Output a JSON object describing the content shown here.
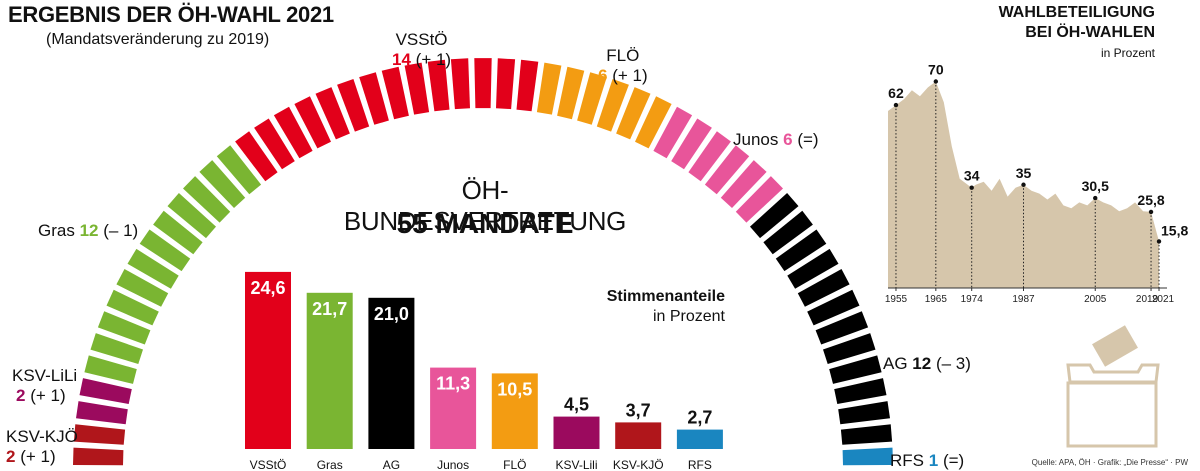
{
  "header": {
    "title": "ERGEBNIS DER ÖH-WAHL 2021",
    "subtitle": "(Mandatsveränderung zu 2019)"
  },
  "center": {
    "title": "ÖH-BUNDESVERTRETUNG",
    "subtitle": "55 MANDATE"
  },
  "party_labels": {
    "vsstoe": {
      "name": "VSStÖ",
      "seats": "14",
      "change": "(+ 1)"
    },
    "floe": {
      "name": "FLÖ",
      "seats": "6",
      "change": "(+ 1)"
    },
    "junos": {
      "name": "Junos",
      "seats": "6",
      "change": "(=)"
    },
    "gras": {
      "name": "Gras",
      "seats": "12",
      "change": "(– 1)"
    },
    "ksvlili": {
      "name": "KSV-LiLi",
      "seats": "2",
      "change": "(+ 1)"
    },
    "ksvkjoe": {
      "name": "KSV-KJÖ",
      "seats": "2",
      "change": "(+ 1)"
    },
    "ag": {
      "name": "AG",
      "seats": "12",
      "change": "(– 3)"
    },
    "rfs": {
      "name": "RFS",
      "seats": "1",
      "change": "(=)"
    }
  },
  "stimmen": {
    "title": "Stimmenanteile",
    "subtitle": "in Prozent"
  },
  "turnout": {
    "title_line1": "WAHLBETEILIGUNG",
    "title_line2": "BEI ÖH-WAHLEN",
    "subtitle": "in Prozent"
  },
  "source": "Quelle: APA, ÖH · Grafik: „Die Presse“ · PW",
  "colors": {
    "vsstoe": "#e2001a",
    "gras": "#7ab532",
    "ag": "#000000",
    "junos": "#e8559a",
    "floe": "#f39c12",
    "ksvlili": "#9b0a5e",
    "ksvkjoe": "#b0161b",
    "rfs": "#1a86c0",
    "turnout_fill": "#d6c6ab"
  },
  "chart_data": [
    {
      "type": "parliament",
      "total": 55,
      "parties": [
        {
          "name": "KSV-KJÖ",
          "seats": 2,
          "change": "+1",
          "color": "#b0161b"
        },
        {
          "name": "KSV-LiLi",
          "seats": 2,
          "change": "+1",
          "color": "#9b0a5e"
        },
        {
          "name": "Gras",
          "seats": 12,
          "change": "-1",
          "color": "#7ab532"
        },
        {
          "name": "VSStÖ",
          "seats": 14,
          "change": "+1",
          "color": "#e2001a"
        },
        {
          "name": "FLÖ",
          "seats": 6,
          "change": "+1",
          "color": "#f39c12"
        },
        {
          "name": "Junos",
          "seats": 6,
          "change": "=",
          "color": "#e8559a"
        },
        {
          "name": "AG",
          "seats": 12,
          "change": "-3",
          "color": "#000000"
        },
        {
          "name": "RFS",
          "seats": 1,
          "change": "=",
          "color": "#1a86c0"
        }
      ]
    },
    {
      "type": "bar",
      "categories": [
        "VSStÖ",
        "Gras",
        "AG",
        "Junos",
        "FLÖ",
        "KSV-Lili",
        "KSV-KJÖ",
        "RFS"
      ],
      "values": [
        24.6,
        21.7,
        21.0,
        11.3,
        10.5,
        4.5,
        3.7,
        2.7
      ],
      "value_labels": [
        "24,6",
        "21,7",
        "21,0",
        "11,3",
        "10,5",
        "4,5",
        "3,7",
        "2,7"
      ],
      "colors": [
        "#e2001a",
        "#7ab532",
        "#000000",
        "#e8559a",
        "#f39c12",
        "#9b0a5e",
        "#b0161b",
        "#1a86c0"
      ],
      "ylim": [
        0,
        25
      ]
    },
    {
      "type": "area",
      "x_ticks": [
        1955,
        1965,
        1974,
        1987,
        2005,
        2019,
        2021
      ],
      "x_tick_labels": [
        "1955",
        "1965",
        "1974",
        "1987",
        "2005",
        "2019",
        "2021"
      ],
      "xlim": [
        1953,
        2022
      ],
      "ylim": [
        0,
        80
      ],
      "x": [
        1953,
        1955,
        1957,
        1959,
        1961,
        1963,
        1965,
        1967,
        1969,
        1971,
        1973,
        1974,
        1975,
        1977,
        1979,
        1981,
        1983,
        1985,
        1987,
        1989,
        1991,
        1993,
        1995,
        1997,
        1999,
        2001,
        2003,
        2005,
        2007,
        2009,
        2011,
        2013,
        2015,
        2017,
        2019,
        2021
      ],
      "y": [
        60,
        62,
        64,
        67,
        65,
        68,
        70,
        63,
        48,
        37,
        35,
        34,
        35,
        36,
        33,
        37,
        31,
        34,
        35,
        33,
        32,
        30,
        32,
        28,
        27,
        29,
        28,
        30.5,
        29,
        28,
        26,
        27,
        29,
        26,
        25.8,
        15.8
      ],
      "annotations": [
        {
          "x": 1955,
          "y": 62,
          "label": "62"
        },
        {
          "x": 1965,
          "y": 70,
          "label": "70"
        },
        {
          "x": 1974,
          "y": 34,
          "label": "34"
        },
        {
          "x": 1987,
          "y": 35,
          "label": "35"
        },
        {
          "x": 2005,
          "y": 30.5,
          "label": "30,5"
        },
        {
          "x": 2019,
          "y": 25.8,
          "label": "25,8"
        },
        {
          "x": 2021,
          "y": 15.8,
          "label": "15,8"
        }
      ]
    }
  ]
}
